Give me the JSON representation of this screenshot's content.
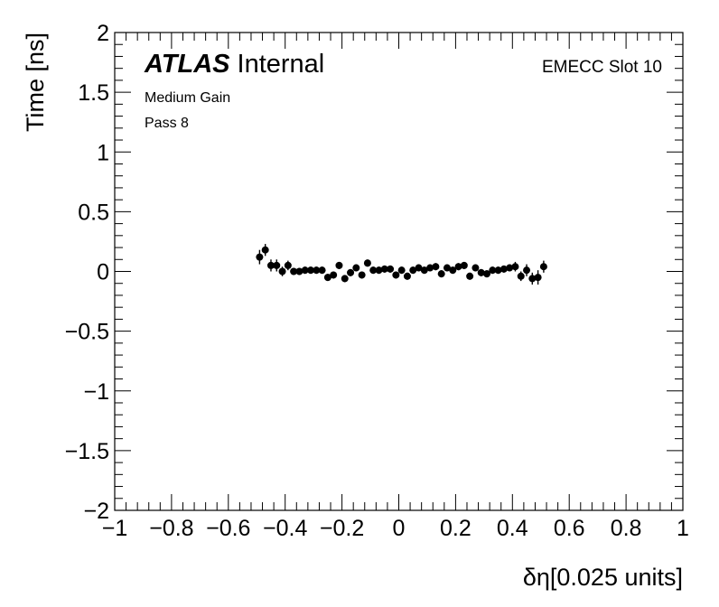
{
  "chart_data": {
    "type": "scatter",
    "title": "",
    "xlabel": "δη[0.025 units]",
    "ylabel": "Time [ns]",
    "xlim": [
      -1,
      1
    ],
    "ylim": [
      -2,
      2
    ],
    "x_major_ticks": [
      -1,
      -0.8,
      -0.6,
      -0.4,
      -0.2,
      0,
      0.2,
      0.4,
      0.6,
      0.8,
      1
    ],
    "x_tick_labels": [
      "−1",
      "−0.8",
      "−0.6",
      "−0.4",
      "−0.2",
      "0",
      "0.2",
      "0.4",
      "0.6",
      "0.8",
      "1"
    ],
    "y_major_ticks": [
      -2,
      -1.5,
      -1,
      -0.5,
      0,
      0.5,
      1,
      1.5,
      2
    ],
    "y_tick_labels": [
      "−2",
      "−1.5",
      "−1",
      "−0.5",
      "0",
      "0.5",
      "1",
      "1.5",
      "2"
    ],
    "grid": false,
    "legend": null,
    "annotations": {
      "atlas_label": "ATLAS",
      "atlas_status": "Internal",
      "gain": "Medium Gain",
      "pass": "Pass 8",
      "slot": "EMECC Slot 10"
    },
    "series": [
      {
        "marker": "circle",
        "color": "#000000",
        "x": [
          -0.49,
          -0.47,
          -0.45,
          -0.43,
          -0.41,
          -0.39,
          -0.37,
          -0.35,
          -0.33,
          -0.31,
          -0.29,
          -0.27,
          -0.25,
          -0.23,
          -0.21,
          -0.19,
          -0.17,
          -0.15,
          -0.13,
          -0.11,
          -0.09,
          -0.07,
          -0.05,
          -0.03,
          -0.01,
          0.01,
          0.03,
          0.05,
          0.07,
          0.09,
          0.11,
          0.13,
          0.15,
          0.17,
          0.19,
          0.21,
          0.23,
          0.25,
          0.27,
          0.29,
          0.31,
          0.33,
          0.35,
          0.37,
          0.39,
          0.41,
          0.43,
          0.45,
          0.47,
          0.49,
          0.51
        ],
        "y": [
          0.12,
          0.18,
          0.05,
          0.05,
          0.0,
          0.05,
          0.0,
          0.0,
          0.01,
          0.01,
          0.01,
          0.01,
          -0.05,
          -0.03,
          0.05,
          -0.06,
          -0.01,
          0.03,
          -0.03,
          0.07,
          0.01,
          0.01,
          0.02,
          0.02,
          -0.03,
          0.01,
          -0.04,
          0.01,
          0.03,
          0.01,
          0.03,
          0.04,
          -0.02,
          0.03,
          0.01,
          0.04,
          0.05,
          -0.04,
          0.03,
          -0.01,
          -0.02,
          0.01,
          0.01,
          0.02,
          0.03,
          0.04,
          -0.04,
          0.01,
          -0.06,
          -0.05,
          0.04
        ],
        "yerr": [
          0.06,
          0.05,
          0.05,
          0.05,
          0.04,
          0.04,
          0.03,
          0.03,
          0.03,
          0.03,
          0.03,
          0.03,
          0.03,
          0.03,
          0.03,
          0.03,
          0.03,
          0.03,
          0.03,
          0.03,
          0.03,
          0.03,
          0.03,
          0.03,
          0.03,
          0.03,
          0.03,
          0.03,
          0.03,
          0.03,
          0.03,
          0.03,
          0.03,
          0.03,
          0.03,
          0.03,
          0.03,
          0.03,
          0.03,
          0.03,
          0.03,
          0.03,
          0.03,
          0.03,
          0.03,
          0.04,
          0.04,
          0.05,
          0.05,
          0.06,
          0.05
        ]
      }
    ]
  }
}
